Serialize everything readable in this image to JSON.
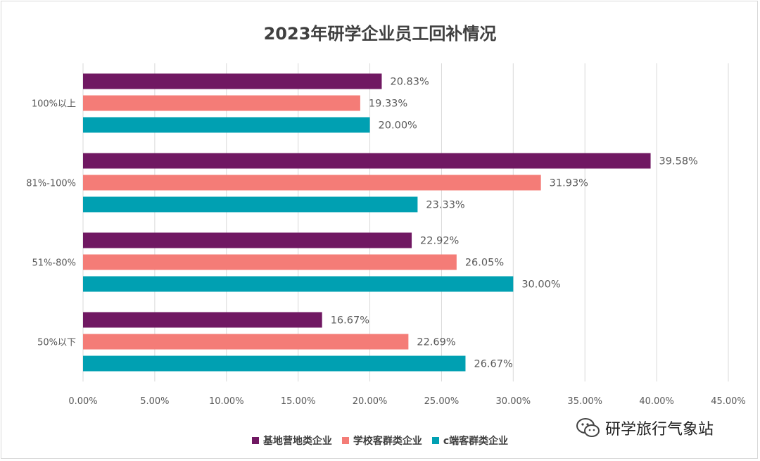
{
  "chart_data": {
    "type": "bar",
    "orientation": "horizontal",
    "title": "2023年研学企业员工回补情况",
    "categories": [
      "100%以上",
      "81%-100%",
      "51%-80%",
      "50%以下"
    ],
    "series": [
      {
        "name": "基地营地类企业",
        "color": "#701862",
        "values": [
          20.83,
          39.58,
          22.92,
          16.67
        ],
        "labels": [
          "20.83%",
          "39.58%",
          "22.92%",
          "16.67%"
        ]
      },
      {
        "name": "学校客群类企业",
        "color": "#F47C77",
        "values": [
          19.33,
          31.93,
          26.05,
          22.69
        ],
        "labels": [
          "19.33%",
          "31.93%",
          "26.05%",
          "22.69%"
        ]
      },
      {
        "name": "c端客群类企业",
        "color": "#00A0B2",
        "values": [
          20.0,
          23.33,
          30.0,
          26.67
        ],
        "labels": [
          "20.00%",
          "23.33%",
          "30.00%",
          "26.67%"
        ]
      }
    ],
    "xlim": [
      0,
      45
    ],
    "xticks": [
      0,
      5,
      10,
      15,
      20,
      25,
      30,
      35,
      40,
      45
    ],
    "xtick_labels": [
      "0.00%",
      "5.00%",
      "10.00%",
      "15.00%",
      "20.00%",
      "25.00%",
      "30.00%",
      "35.00%",
      "40.00%",
      "45.00%"
    ],
    "grid": "vertical",
    "legend_position": "bottom"
  },
  "watermark": {
    "text": "研学旅行气象站",
    "icon": "wechat-icon"
  }
}
